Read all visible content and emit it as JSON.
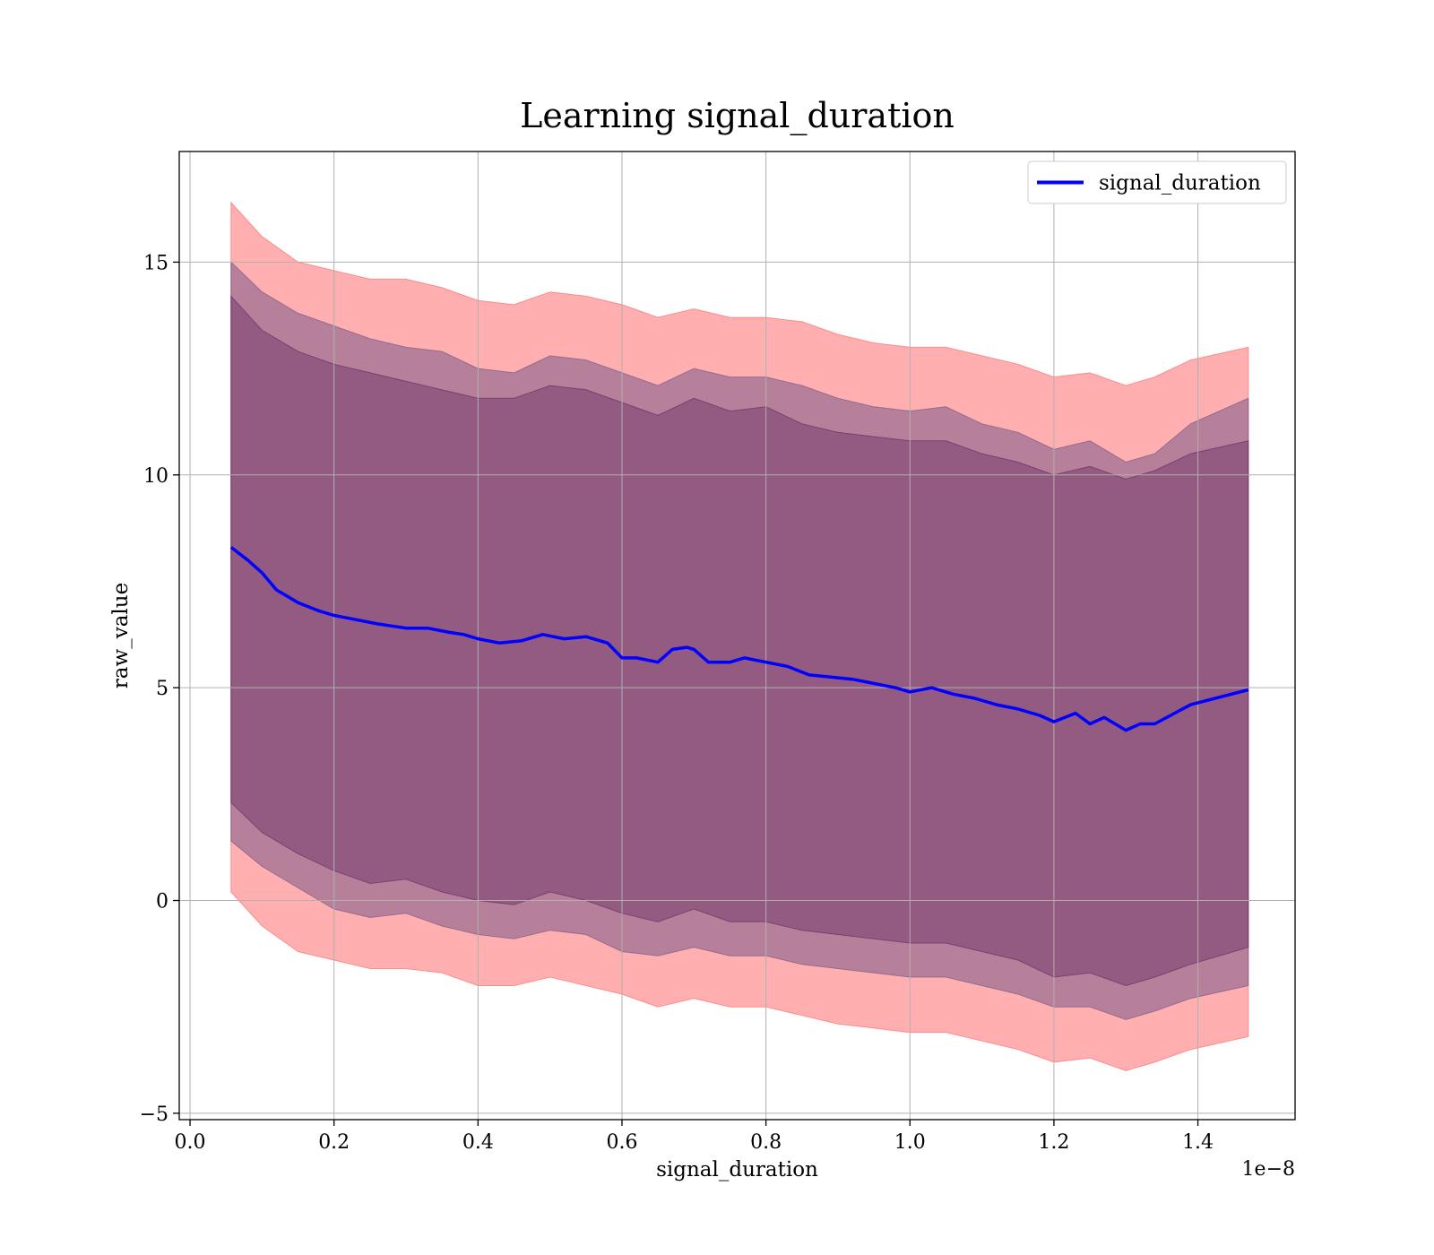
{
  "chart_data": {
    "type": "line",
    "title": "Learning signal_duration",
    "xlabel": "signal_duration",
    "ylabel": "raw_value",
    "x_offset_text": "1e−8",
    "xlim": [
      -0.015,
      1.535
    ],
    "ylim": [
      -5.15,
      17.6
    ],
    "xticks": [
      0.0,
      0.2,
      0.4,
      0.6,
      0.8,
      1.0,
      1.2,
      1.4
    ],
    "xtick_labels": [
      "0.0",
      "0.2",
      "0.4",
      "0.6",
      "0.8",
      "1.0",
      "1.2",
      "1.4"
    ],
    "yticks": [
      -5,
      0,
      5,
      10,
      15
    ],
    "ytick_labels": [
      "−5",
      "0",
      "5",
      "10",
      "15"
    ],
    "grid": true,
    "legend": {
      "position": "top-right",
      "entries": [
        "signal_duration"
      ]
    },
    "series": [
      {
        "name": "signal_duration",
        "color": "#0000ff",
        "x": [
          0.057,
          0.08,
          0.1,
          0.12,
          0.15,
          0.18,
          0.2,
          0.23,
          0.26,
          0.3,
          0.33,
          0.36,
          0.38,
          0.4,
          0.43,
          0.46,
          0.49,
          0.52,
          0.55,
          0.58,
          0.6,
          0.62,
          0.65,
          0.67,
          0.69,
          0.7,
          0.72,
          0.75,
          0.77,
          0.8,
          0.83,
          0.86,
          0.89,
          0.92,
          0.95,
          0.98,
          1.0,
          1.03,
          1.06,
          1.09,
          1.12,
          1.15,
          1.18,
          1.2,
          1.23,
          1.25,
          1.27,
          1.3,
          1.32,
          1.34,
          1.39,
          1.47
        ],
        "y": [
          8.3,
          8.0,
          7.7,
          7.3,
          7.0,
          6.8,
          6.7,
          6.6,
          6.5,
          6.4,
          6.4,
          6.3,
          6.25,
          6.15,
          6.05,
          6.1,
          6.25,
          6.15,
          6.2,
          6.05,
          5.7,
          5.7,
          5.6,
          5.9,
          5.95,
          5.9,
          5.6,
          5.6,
          5.7,
          5.6,
          5.5,
          5.3,
          5.25,
          5.2,
          5.1,
          5.0,
          4.9,
          5.0,
          4.85,
          4.75,
          4.6,
          4.5,
          4.35,
          4.2,
          4.4,
          4.15,
          4.3,
          4.0,
          4.15,
          4.15,
          4.6,
          4.95
        ]
      }
    ],
    "bands": [
      {
        "color": "#ff6e6e",
        "opacity": 0.55,
        "x": [
          0.057,
          0.1,
          0.15,
          0.2,
          0.25,
          0.3,
          0.35,
          0.4,
          0.45,
          0.5,
          0.55,
          0.6,
          0.65,
          0.7,
          0.75,
          0.8,
          0.85,
          0.9,
          0.95,
          1.0,
          1.05,
          1.1,
          1.15,
          1.2,
          1.25,
          1.3,
          1.34,
          1.39,
          1.47
        ],
        "upper": [
          16.4,
          15.6,
          15.0,
          14.8,
          14.6,
          14.6,
          14.4,
          14.1,
          14.0,
          14.3,
          14.2,
          14.0,
          13.7,
          13.9,
          13.7,
          13.7,
          13.6,
          13.3,
          13.1,
          13.0,
          13.0,
          12.8,
          12.6,
          12.3,
          12.4,
          12.1,
          12.3,
          12.7,
          13.0
        ],
        "lower": [
          0.2,
          -0.6,
          -1.2,
          -1.4,
          -1.6,
          -1.6,
          -1.7,
          -2.0,
          -2.0,
          -1.8,
          -2.0,
          -2.2,
          -2.5,
          -2.3,
          -2.5,
          -2.5,
          -2.7,
          -2.9,
          -3.0,
          -3.1,
          -3.1,
          -3.3,
          -3.5,
          -3.8,
          -3.7,
          -4.0,
          -3.8,
          -3.5,
          -3.2
        ]
      },
      {
        "color": "#7a5a8a",
        "opacity": 0.55,
        "x": [
          0.057,
          0.1,
          0.15,
          0.2,
          0.25,
          0.3,
          0.35,
          0.4,
          0.45,
          0.5,
          0.55,
          0.6,
          0.65,
          0.7,
          0.75,
          0.8,
          0.85,
          0.9,
          0.95,
          1.0,
          1.05,
          1.1,
          1.15,
          1.2,
          1.25,
          1.3,
          1.34,
          1.39,
          1.47
        ],
        "upper": [
          15.0,
          14.3,
          13.8,
          13.5,
          13.2,
          13.0,
          12.9,
          12.5,
          12.4,
          12.8,
          12.7,
          12.4,
          12.1,
          12.5,
          12.3,
          12.3,
          12.1,
          11.8,
          11.6,
          11.5,
          11.6,
          11.2,
          11.0,
          10.6,
          10.8,
          10.3,
          10.5,
          11.2,
          11.8
        ],
        "lower": [
          1.4,
          0.8,
          0.3,
          -0.2,
          -0.4,
          -0.3,
          -0.6,
          -0.8,
          -0.9,
          -0.7,
          -0.8,
          -1.2,
          -1.3,
          -1.1,
          -1.3,
          -1.3,
          -1.5,
          -1.6,
          -1.7,
          -1.8,
          -1.8,
          -2.0,
          -2.2,
          -2.5,
          -2.5,
          -2.8,
          -2.6,
          -2.3,
          -2.0
        ]
      },
      {
        "color": "#6b2e63",
        "opacity": 0.45,
        "x": [
          0.057,
          0.1,
          0.15,
          0.2,
          0.25,
          0.3,
          0.35,
          0.4,
          0.45,
          0.5,
          0.55,
          0.6,
          0.65,
          0.7,
          0.75,
          0.8,
          0.85,
          0.9,
          0.95,
          1.0,
          1.05,
          1.1,
          1.15,
          1.2,
          1.25,
          1.3,
          1.34,
          1.39,
          1.47
        ],
        "upper": [
          14.2,
          13.4,
          12.9,
          12.6,
          12.4,
          12.2,
          12.0,
          11.8,
          11.8,
          12.1,
          12.0,
          11.7,
          11.4,
          11.8,
          11.5,
          11.6,
          11.2,
          11.0,
          10.9,
          10.8,
          10.8,
          10.5,
          10.3,
          10.0,
          10.2,
          9.9,
          10.1,
          10.5,
          10.8
        ],
        "lower": [
          2.3,
          1.6,
          1.1,
          0.7,
          0.4,
          0.5,
          0.2,
          0.0,
          -0.1,
          0.2,
          0.0,
          -0.3,
          -0.5,
          -0.2,
          -0.5,
          -0.5,
          -0.7,
          -0.8,
          -0.9,
          -1.0,
          -1.0,
          -1.2,
          -1.4,
          -1.8,
          -1.7,
          -2.0,
          -1.8,
          -1.5,
          -1.1
        ]
      }
    ]
  }
}
